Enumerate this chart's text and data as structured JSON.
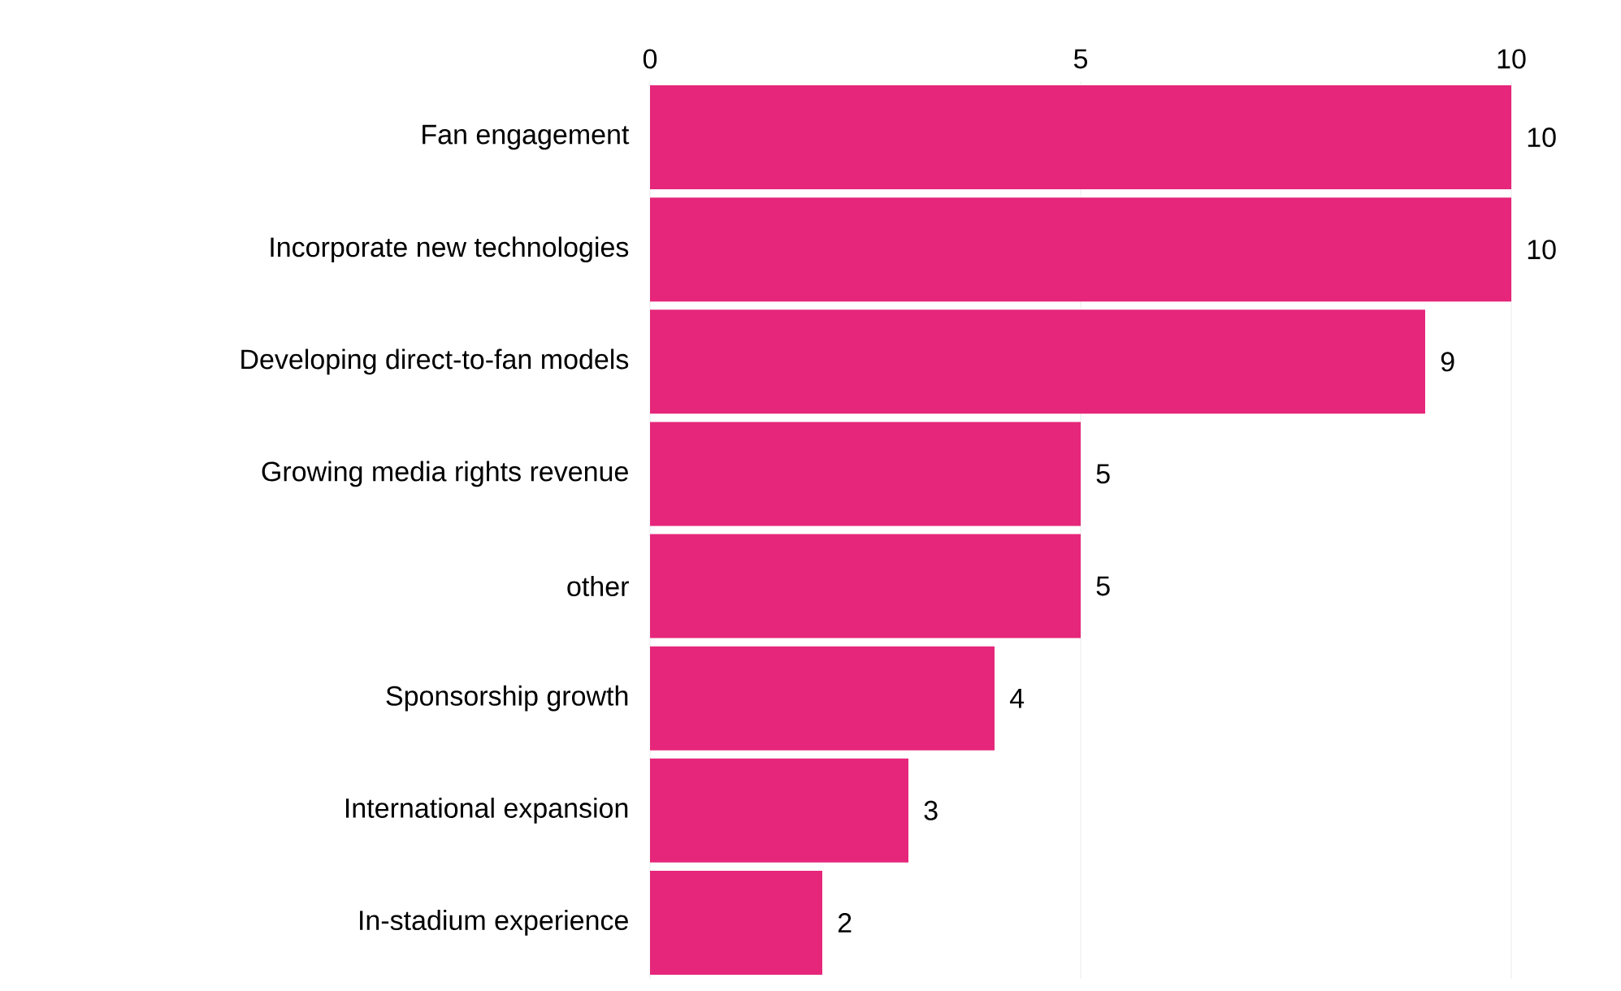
{
  "chart_data": {
    "type": "bar",
    "orientation": "horizontal",
    "categories": [
      "Fan engagement",
      "Incorporate new technologies",
      "Developing direct-to-fan models",
      "Growing media rights revenue",
      "other",
      "Sponsorship growth",
      "International expansion",
      "In-stadium experience"
    ],
    "values": [
      10,
      10,
      9,
      5,
      5,
      4,
      3,
      2
    ],
    "color": "#e6267a",
    "xlim": [
      0,
      10
    ],
    "xticks": [
      0,
      5,
      10
    ],
    "grid": "x",
    "data_labels": true
  }
}
